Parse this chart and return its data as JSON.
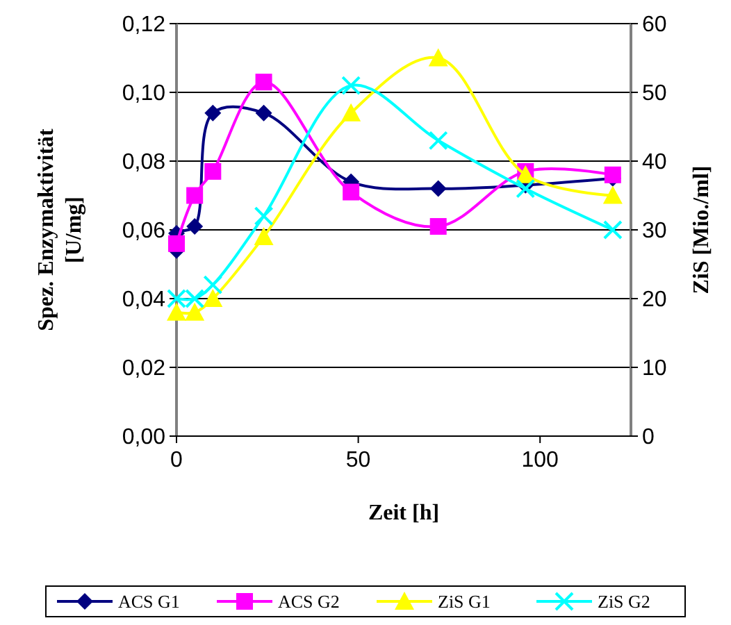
{
  "chart_data": {
    "type": "line",
    "xlabel": "Zeit [h]",
    "ylabel": "Spez. Enzymaktivität [U/mg]",
    "y2label": "ZiS [Mio./ml]",
    "x": [
      0,
      5,
      10,
      24,
      48,
      72,
      96,
      120
    ],
    "xlim": [
      0,
      125
    ],
    "xticks": [
      0,
      50,
      100
    ],
    "ylim": [
      0,
      0.12
    ],
    "yticks": [
      {
        "value": 0,
        "label": "0,00"
      },
      {
        "value": 0.02,
        "label": "0,02"
      },
      {
        "value": 0.04,
        "label": "0,04"
      },
      {
        "value": 0.06,
        "label": "0,06"
      },
      {
        "value": 0.08,
        "label": "0,08"
      },
      {
        "value": 0.1,
        "label": "0,10"
      },
      {
        "value": 0.12,
        "label": "0,12"
      }
    ],
    "y2lim": [
      0,
      60
    ],
    "y2ticks": [
      0,
      10,
      20,
      30,
      40,
      50,
      60
    ],
    "grid": "y",
    "legend": "bottom",
    "series": [
      {
        "name": "ACS G1",
        "color": "#000080",
        "marker": "diamond",
        "x": [
          0,
          0,
          5,
          10,
          24,
          48,
          72,
          96,
          120
        ],
        "values": [
          0.054,
          0.059,
          0.061,
          0.094,
          0.094,
          0.074,
          0.072,
          0.073,
          0.075
        ]
      },
      {
        "name": "ACS G2",
        "color": "#ff00ff",
        "marker": "square",
        "values": [
          0.056,
          0.07,
          0.077,
          0.103,
          0.071,
          0.061,
          0.077,
          0.076
        ]
      },
      {
        "name": "ZiS G1",
        "color": "#ffff00",
        "marker": "triangle",
        "axis": "y2",
        "values": [
          18,
          18,
          20,
          29,
          47,
          55,
          38,
          35
        ]
      },
      {
        "name": "ZiS G2",
        "color": "#00ffff",
        "marker": "cross",
        "axis": "y2",
        "values": [
          20,
          20,
          22,
          32,
          51,
          43,
          36,
          30
        ]
      }
    ]
  }
}
